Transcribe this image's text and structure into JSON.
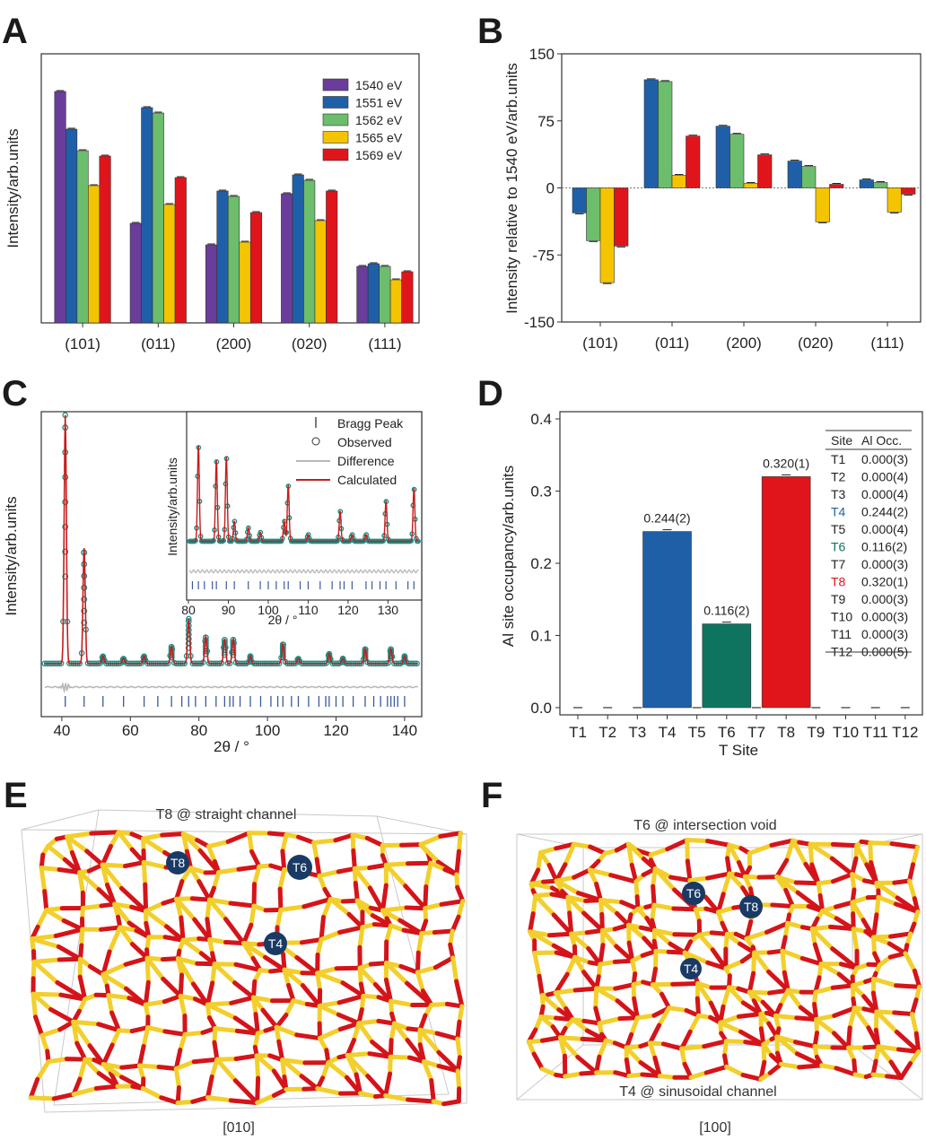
{
  "panels": {
    "A": {
      "label": "A",
      "ylabel": "Intensity/arb.units"
    },
    "B": {
      "label": "B",
      "ylabel": "Intensity relative to 1540 eV/arb.units"
    },
    "C": {
      "label": "C",
      "ylabel": "Intensity/arb.units",
      "xlabel": "2θ / °",
      "inset_ylabel": "Intensity/arb.units",
      "inset_xlabel": "2θ / °"
    },
    "D": {
      "label": "D",
      "ylabel": "Al site occupancy/arb.units",
      "xlabel": "T Site"
    },
    "E": {
      "label": "E",
      "title": "T8 @ straight channel",
      "view": "[010]",
      "sites": [
        "T8",
        "T6",
        "T4"
      ]
    },
    "F": {
      "label": "F",
      "title": "T6 @ intersection void",
      "bottom_title": "T4 @ sinusoidal channel",
      "view": "[100]",
      "sites": [
        "T6",
        "T8",
        "T4"
      ]
    }
  },
  "colors": {
    "1540": "#6a3d9a",
    "1551": "#1f5fa8",
    "1562": "#6cbd6c",
    "1565": "#f5c400",
    "1569": "#e0151b",
    "T4": "#1f5fa8",
    "T6": "#0e7460",
    "T8": "#e0151b",
    "oxygen": "#d4141a",
    "silicon": "#f2cf2c",
    "site_marker": "#1a3a66",
    "observed": "#1f8f86",
    "calculated": "#c81c1c",
    "difference": "#b8b8b8",
    "bragg": "#3b5a9a"
  },
  "chart_data": [
    {
      "id": "A",
      "type": "bar",
      "categories": [
        "(101)",
        "(011)",
        "(200)",
        "(020)",
        "(111)"
      ],
      "series": [
        {
          "name": "1540 eV",
          "values": [
            86,
            37,
            29,
            48,
            21
          ]
        },
        {
          "name": "1551 eV",
          "values": [
            72,
            80,
            49,
            55,
            22
          ]
        },
        {
          "name": "1562 eV",
          "values": [
            64,
            78,
            47,
            53,
            21
          ]
        },
        {
          "name": "1565 eV",
          "values": [
            51,
            44,
            30,
            38,
            16
          ]
        },
        {
          "name": "1569 eV",
          "values": [
            62,
            54,
            41,
            49,
            19
          ]
        }
      ],
      "ylim": [
        0,
        100
      ],
      "legend": "top-right",
      "yticks": "none"
    },
    {
      "id": "B",
      "type": "bar",
      "categories": [
        "(101)",
        "(011)",
        "(200)",
        "(020)",
        "(111)"
      ],
      "series": [
        {
          "name": "1551 eV",
          "values": [
            -28,
            121,
            69,
            30,
            9
          ]
        },
        {
          "name": "1562 eV",
          "values": [
            -59,
            119,
            60,
            24,
            6
          ]
        },
        {
          "name": "1565 eV",
          "values": [
            -106,
            14,
            5,
            -38,
            -27
          ]
        },
        {
          "name": "1569 eV",
          "values": [
            -65,
            58,
            37,
            4,
            -7
          ]
        }
      ],
      "ylim": [
        -150,
        150
      ],
      "yticks": [
        -150,
        -75,
        0,
        75,
        150
      ]
    },
    {
      "id": "C",
      "type": "line",
      "xlim": [
        34,
        145
      ],
      "xticks": [
        40,
        60,
        80,
        100,
        120,
        140
      ],
      "legend": [
        "Bragg Peak",
        "Observed",
        "Difference",
        "Calculated"
      ],
      "peaks": [
        {
          "x": 41,
          "h": 100
        },
        {
          "x": 46.5,
          "h": 47
        },
        {
          "x": 52,
          "h": 3
        },
        {
          "x": 58,
          "h": 2
        },
        {
          "x": 64,
          "h": 3
        },
        {
          "x": 72,
          "h": 7
        },
        {
          "x": 77,
          "h": 18
        },
        {
          "x": 82,
          "h": 11
        },
        {
          "x": 87.5,
          "h": 10
        },
        {
          "x": 90,
          "h": 10
        },
        {
          "x": 95,
          "h": 3
        },
        {
          "x": 104.5,
          "h": 8
        },
        {
          "x": 109,
          "h": 2
        },
        {
          "x": 118,
          "h": 4
        },
        {
          "x": 122,
          "h": 2
        },
        {
          "x": 128.5,
          "h": 6
        },
        {
          "x": 136,
          "h": 6
        },
        {
          "x": 140,
          "h": 3
        }
      ],
      "bragg_positions": [
        41,
        46.5,
        52,
        58,
        64,
        68,
        72,
        75,
        77,
        79,
        82,
        85,
        87.5,
        89,
        90,
        92,
        95,
        98,
        101,
        103,
        104.5,
        107,
        109,
        112,
        115,
        117,
        118,
        120,
        122,
        125,
        128.5,
        131,
        133,
        135,
        136,
        137,
        138,
        140
      ],
      "inset": {
        "xlim": [
          80,
          138
        ],
        "xticks": [
          80,
          90,
          100,
          110,
          120,
          130
        ],
        "peaks": [
          {
            "x": 82.5,
            "h": 85
          },
          {
            "x": 87,
            "h": 72
          },
          {
            "x": 89.5,
            "h": 75
          },
          {
            "x": 91.5,
            "h": 18
          },
          {
            "x": 95,
            "h": 12
          },
          {
            "x": 98,
            "h": 8
          },
          {
            "x": 104,
            "h": 18
          },
          {
            "x": 105,
            "h": 50
          },
          {
            "x": 110,
            "h": 6
          },
          {
            "x": 118,
            "h": 27
          },
          {
            "x": 121,
            "h": 6
          },
          {
            "x": 124.5,
            "h": 6
          },
          {
            "x": 129.5,
            "h": 36
          },
          {
            "x": 136.5,
            "h": 47
          }
        ],
        "bragg_positions": [
          81,
          82.5,
          84,
          86,
          87,
          89.5,
          91.5,
          95,
          98,
          100,
          102,
          104,
          105,
          108,
          110,
          113,
          116,
          118,
          119,
          121,
          124.5,
          126,
          128,
          129.5,
          132,
          135,
          136.5
        ]
      }
    },
    {
      "id": "D",
      "type": "bar",
      "categories": [
        "T1",
        "T2",
        "T3",
        "T4",
        "T5",
        "T6",
        "T7",
        "T8",
        "T9",
        "T10",
        "T11",
        "T12"
      ],
      "values": [
        0.0,
        0.0,
        0.0,
        0.244,
        0.0,
        0.116,
        0.0,
        0.32,
        0.0,
        0.0,
        0.0,
        0.0
      ],
      "value_labels": {
        "T4": "0.244(2)",
        "T6": "0.116(2)",
        "T8": "0.320(1)"
      },
      "ylim": [
        -0.01,
        0.41
      ],
      "yticks": [
        "0.0",
        "0.1",
        "0.2",
        "0.3",
        "0.4"
      ],
      "table": {
        "headers": [
          "Site",
          "Al Occ."
        ],
        "rows": [
          [
            "T1",
            "0.000(3)"
          ],
          [
            "T2",
            "0.000(4)"
          ],
          [
            "T3",
            "0.000(4)"
          ],
          [
            "T4",
            "0.244(2)"
          ],
          [
            "T5",
            "0.000(4)"
          ],
          [
            "T6",
            "0.116(2)"
          ],
          [
            "T7",
            "0.000(3)"
          ],
          [
            "T8",
            "0.320(1)"
          ],
          [
            "T9",
            "0.000(3)"
          ],
          [
            "T10",
            "0.000(3)"
          ],
          [
            "T11",
            "0.000(3)"
          ],
          [
            "T12",
            "0.000(5)"
          ]
        ]
      }
    }
  ]
}
